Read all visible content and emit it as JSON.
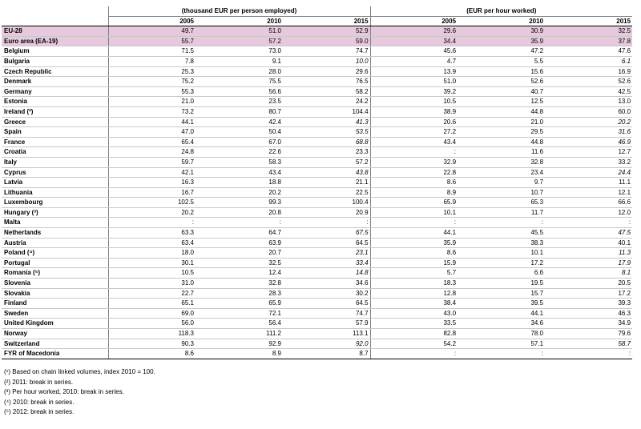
{
  "headers": {
    "group1": "(thousand EUR per person employed)",
    "group2": "(EUR per hour worked)",
    "years": [
      "2005",
      "2010",
      "2015",
      "2005",
      "2010",
      "2015"
    ]
  },
  "rows": [
    {
      "label": "EU-28",
      "v": [
        "49.7",
        "51.0",
        "52.9",
        "29.6",
        "30.9",
        "32.5"
      ],
      "italic": []
    },
    {
      "label": "Euro area (EA-19)",
      "v": [
        "55.7",
        "57.2",
        "59.0",
        "34.4",
        "35.9",
        "37.8"
      ],
      "italic": []
    },
    {
      "label": "Belgium",
      "v": [
        "71.5",
        "73.0",
        "74.7",
        "45.6",
        "47.2",
        "47.6"
      ],
      "italic": []
    },
    {
      "label": "Bulgaria",
      "v": [
        "7.8",
        "9.1",
        "10.0",
        "4.7",
        "5.5",
        "6.1"
      ],
      "italic": [
        2,
        5
      ]
    },
    {
      "label": "Czech Republic",
      "v": [
        "25.3",
        "28.0",
        "29.6",
        "13.9",
        "15.6",
        "16.9"
      ],
      "italic": []
    },
    {
      "label": "Denmark",
      "v": [
        "75.2",
        "75.5",
        "76.5",
        "51.0",
        "52.6",
        "52.6"
      ],
      "italic": []
    },
    {
      "label": "Germany",
      "v": [
        "55.3",
        "56.6",
        "58.2",
        "39.2",
        "40.7",
        "42.5"
      ],
      "italic": []
    },
    {
      "label": "Estonia",
      "v": [
        "21.0",
        "23.5",
        "24.2",
        "10.5",
        "12.5",
        "13.0"
      ],
      "italic": []
    },
    {
      "label": "Ireland (²)",
      "v": [
        "73.2",
        "80.7",
        "104.4",
        "38.9",
        "44.8",
        "60.0"
      ],
      "italic": []
    },
    {
      "label": "Greece",
      "v": [
        "44.1",
        "42.4",
        "41.3",
        "20.6",
        "21.0",
        "20.2"
      ],
      "italic": [
        2,
        5
      ]
    },
    {
      "label": "Spain",
      "v": [
        "47.0",
        "50.4",
        "53.5",
        "27.2",
        "29.5",
        "31.6"
      ],
      "italic": [
        2,
        5
      ]
    },
    {
      "label": "France",
      "v": [
        "65.4",
        "67.0",
        "68.8",
        "43.4",
        "44.8",
        "46.9"
      ],
      "italic": [
        2,
        5
      ]
    },
    {
      "label": "Croatia",
      "v": [
        "24.8",
        "22.6",
        "23.3",
        ":",
        "11.6",
        "12.7"
      ],
      "italic": []
    },
    {
      "label": "Italy",
      "v": [
        "59.7",
        "58.3",
        "57.2",
        "32.9",
        "32.8",
        "33.2"
      ],
      "italic": []
    },
    {
      "label": "Cyprus",
      "v": [
        "42.1",
        "43.4",
        "43.8",
        "22.8",
        "23.4",
        "24.4"
      ],
      "italic": [
        2,
        5
      ]
    },
    {
      "label": "Latvia",
      "v": [
        "16.3",
        "18.8",
        "21.1",
        "8.6",
        "9.7",
        "11.1"
      ],
      "italic": []
    },
    {
      "label": "Lithuania",
      "v": [
        "16.7",
        "20.2",
        "22.5",
        "8.9",
        "10.7",
        "12.1"
      ],
      "italic": []
    },
    {
      "label": "Luxembourg",
      "v": [
        "102.5",
        "99.3",
        "100.4",
        "65.9",
        "65.3",
        "66.6"
      ],
      "italic": []
    },
    {
      "label": "Hungary (³)",
      "v": [
        "20.2",
        "20.8",
        "20.9",
        "10.1",
        "11.7",
        "12.0"
      ],
      "italic": []
    },
    {
      "label": "Malta",
      "v": [
        ":",
        ":",
        ":",
        ":",
        ":",
        ":"
      ],
      "italic": []
    },
    {
      "label": "Netherlands",
      "v": [
        "63.3",
        "64.7",
        "67.5",
        "44.1",
        "45.5",
        "47.5"
      ],
      "italic": [
        2,
        5
      ]
    },
    {
      "label": "Austria",
      "v": [
        "63.4",
        "63.9",
        "64.5",
        "35.9",
        "38.3",
        "40.1"
      ],
      "italic": []
    },
    {
      "label": "Poland (⁴)",
      "v": [
        "18.0",
        "20.7",
        "23.1",
        "8.6",
        "10.1",
        "11.3"
      ],
      "italic": [
        2,
        5
      ]
    },
    {
      "label": "Portugal",
      "v": [
        "30.1",
        "32.5",
        "33.4",
        "15.9",
        "17.2",
        "17.9"
      ],
      "italic": [
        2,
        5
      ]
    },
    {
      "label": "Romania (⁵)",
      "v": [
        "10.5",
        "12.4",
        "14.8",
        "5.7",
        "6.6",
        "8.1"
      ],
      "italic": [
        2,
        5
      ]
    },
    {
      "label": "Slovenia",
      "v": [
        "31.0",
        "32.8",
        "34.6",
        "18.3",
        "19.5",
        "20.5"
      ],
      "italic": []
    },
    {
      "label": "Slovakia",
      "v": [
        "22.7",
        "28.3",
        "30.2",
        "12.8",
        "15.7",
        "17.2"
      ],
      "italic": []
    },
    {
      "label": "Finland",
      "v": [
        "65.1",
        "65.9",
        "64.5",
        "38.4",
        "39.5",
        "39.3"
      ],
      "italic": []
    },
    {
      "label": "Sweden",
      "v": [
        "69.0",
        "72.1",
        "74.7",
        "43.0",
        "44.1",
        "46.3"
      ],
      "italic": []
    },
    {
      "label": "United Kingdom",
      "v": [
        "56.0",
        "56.4",
        "57.9",
        "33.5",
        "34.6",
        "34.9"
      ],
      "italic": []
    },
    {
      "label": "Norway",
      "v": [
        "118.3",
        "111.2",
        "113.1",
        "82.8",
        "78.0",
        "79.6"
      ],
      "italic": []
    },
    {
      "label": "Switzerland",
      "v": [
        "90.3",
        "92.9",
        "92.0",
        "54.2",
        "57.1",
        "58.7"
      ],
      "italic": [
        2,
        5
      ]
    },
    {
      "label": "FYR of Macedonia",
      "v": [
        "8.6",
        "8.9",
        "8.7",
        ":",
        ":",
        ":"
      ],
      "italic": []
    }
  ],
  "notes": [
    "(¹) Based on chain linked volumes, index 2010 = 100.",
    "(²) 2011: break in series.",
    "(³) Per hour worked, 2010: break in series.",
    "(⁴) 2010: break in series.",
    "(⁵) 2012: break in series."
  ]
}
